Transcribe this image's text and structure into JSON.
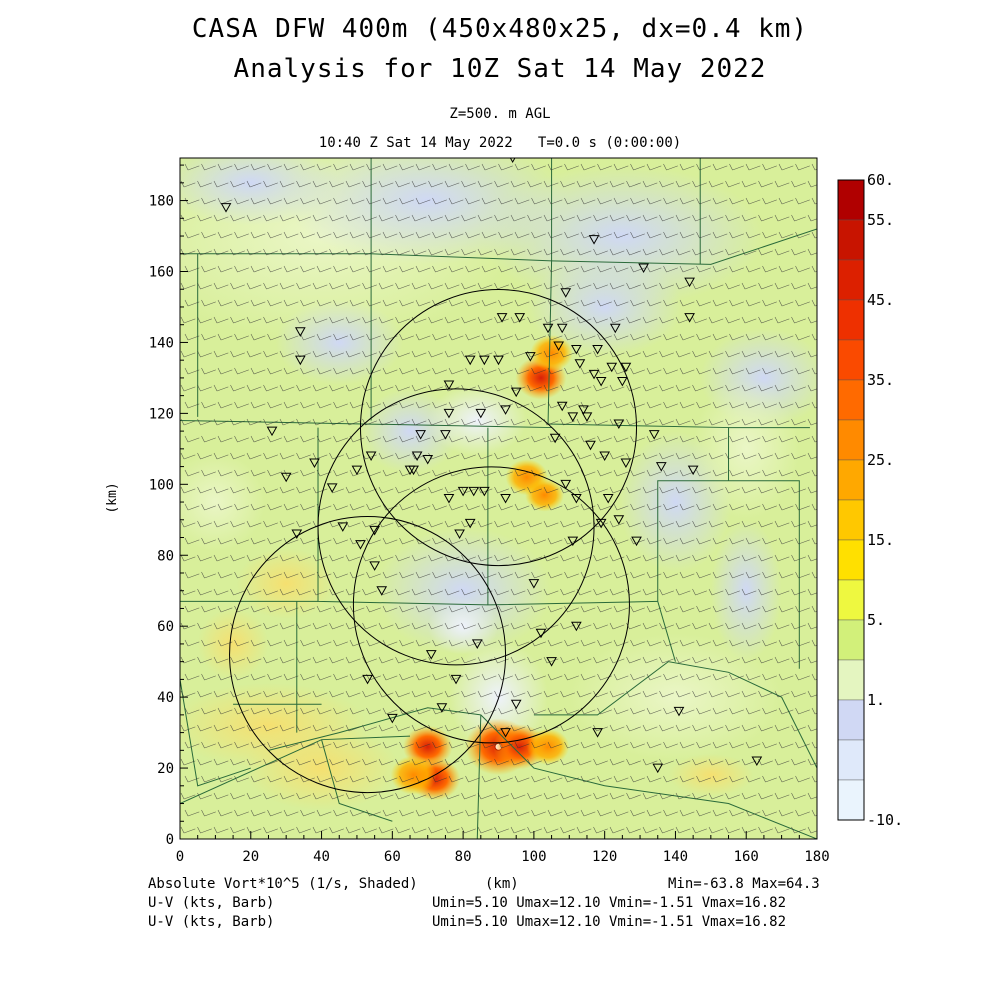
{
  "titles": {
    "line1": "CASA DFW 400m (450x480x25, dx=0.4 km)",
    "line2": "Analysis for 10Z Sat 14 May 2022",
    "level": "Z=500. m AGL",
    "time": "10:40 Z Sat 14 May 2022   T=0.0 s (0:00:00)"
  },
  "footer": {
    "field_label": "Absolute Vort*10^5 (1/s, Shaded)",
    "x_unit": "(km)",
    "minmax": "Min=-63.8 Max=64.3",
    "wind1_label": "U-V (kts, Barb)",
    "wind1_stats": "Umin=5.10 Umax=12.10 Vmin=-1.51 Vmax=16.82",
    "wind2_label": "U-V (kts, Barb)",
    "wind2_stats": "Umin=5.10 Umax=12.10 Vmin=-1.51 Vmax=16.82"
  },
  "colors": {
    "plot_bg": "#d8ef9a",
    "light_green": "#e6f5bd",
    "blue": "#d5dcf4",
    "yellow": "#f3e680",
    "orange": "#f0a030",
    "red": "#d83010",
    "county_line": "#2a6a3a"
  },
  "chart_data": {
    "type": "heatmap",
    "field": "Absolute Vort*10^5 (1/s, Shaded)",
    "xlabel": "(km)",
    "ylabel": "(km)",
    "xlim": [
      0,
      180
    ],
    "ylim": [
      0,
      192
    ],
    "x_ticks": [
      0,
      20,
      40,
      60,
      80,
      100,
      120,
      140,
      160,
      180
    ],
    "y_ticks": [
      0,
      20,
      40,
      60,
      80,
      100,
      120,
      140,
      160,
      180
    ],
    "colorbar": {
      "labels": [
        "60.",
        "55.",
        "45.",
        "35.",
        "25.",
        "15.",
        "5.",
        "1.",
        "-10."
      ],
      "levels": [
        60,
        55,
        50,
        45,
        40,
        35,
        30,
        25,
        20,
        15,
        10,
        5,
        2,
        1,
        -5,
        -10
      ],
      "colors": [
        "#b00000",
        "#c81400",
        "#dc2000",
        "#ee3000",
        "#fa4a00",
        "#ff6a00",
        "#ff8a00",
        "#ffa800",
        "#ffc800",
        "#ffe000",
        "#eef840",
        "#d2f07a",
        "#e4f5c0",
        "#d0d8f4",
        "#dfe9fa",
        "#eaf4fd"
      ]
    },
    "min": -63.8,
    "max": 64.3,
    "radar_rings": [
      {
        "cx": 90,
        "cy": 116,
        "r": 39
      },
      {
        "cx": 78,
        "cy": 88,
        "r": 39
      },
      {
        "cx": 88,
        "cy": 66,
        "r": 39
      },
      {
        "cx": 53,
        "cy": 52,
        "r": 39
      }
    ],
    "radar_sites": [
      [
        13,
        178
      ],
      [
        34,
        143
      ],
      [
        34,
        135
      ],
      [
        26,
        115
      ],
      [
        94,
        192
      ],
      [
        117,
        169
      ],
      [
        131,
        161
      ],
      [
        144,
        147
      ],
      [
        144,
        157
      ],
      [
        109,
        154
      ],
      [
        91,
        147
      ],
      [
        96,
        147
      ],
      [
        104,
        144
      ],
      [
        108,
        144
      ],
      [
        123,
        144
      ],
      [
        107,
        139
      ],
      [
        99,
        136
      ],
      [
        112,
        138
      ],
      [
        118,
        138
      ],
      [
        113,
        134
      ],
      [
        117,
        131
      ],
      [
        122,
        133
      ],
      [
        119,
        129
      ],
      [
        125,
        129
      ],
      [
        126,
        133
      ],
      [
        95,
        126
      ],
      [
        108,
        122
      ],
      [
        111,
        119
      ],
      [
        114,
        121
      ],
      [
        115,
        119
      ],
      [
        76,
        128
      ],
      [
        82,
        135
      ],
      [
        86,
        135
      ],
      [
        90,
        135
      ],
      [
        76,
        120
      ],
      [
        85,
        120
      ],
      [
        68,
        114
      ],
      [
        75,
        114
      ],
      [
        67,
        108
      ],
      [
        70,
        107
      ],
      [
        65,
        104
      ],
      [
        66,
        104
      ],
      [
        54,
        108
      ],
      [
        50,
        104
      ],
      [
        38,
        106
      ],
      [
        43,
        99
      ],
      [
        92,
        121
      ],
      [
        106,
        113
      ],
      [
        116,
        111
      ],
      [
        120,
        108
      ],
      [
        126,
        106
      ],
      [
        124,
        117
      ],
      [
        134,
        114
      ],
      [
        136,
        105
      ],
      [
        145,
        104
      ],
      [
        109,
        100
      ],
      [
        112,
        96
      ],
      [
        121,
        96
      ],
      [
        124,
        90
      ],
      [
        129,
        84
      ],
      [
        119,
        89
      ],
      [
        111,
        84
      ],
      [
        92,
        96
      ],
      [
        86,
        98
      ],
      [
        76,
        96
      ],
      [
        80,
        98
      ],
      [
        83,
        98
      ],
      [
        82,
        89
      ],
      [
        79,
        86
      ],
      [
        55,
        87
      ],
      [
        51,
        83
      ],
      [
        46,
        88
      ],
      [
        30,
        102
      ],
      [
        33,
        86
      ],
      [
        55,
        77
      ],
      [
        57,
        70
      ],
      [
        100,
        72
      ],
      [
        112,
        60
      ],
      [
        102,
        58
      ],
      [
        105,
        50
      ],
      [
        84,
        55
      ],
      [
        78,
        45
      ],
      [
        71,
        52
      ],
      [
        53,
        45
      ],
      [
        60,
        34
      ],
      [
        74,
        37
      ],
      [
        95,
        38
      ],
      [
        92,
        30
      ],
      [
        118,
        30
      ],
      [
        135,
        20
      ],
      [
        163,
        22
      ],
      [
        141,
        36
      ]
    ],
    "vorticity_features": [
      {
        "x": 102,
        "y": 130,
        "max": 42
      },
      {
        "x": 105,
        "y": 137,
        "max": 30
      },
      {
        "x": 98,
        "y": 102,
        "max": 30
      },
      {
        "x": 103,
        "y": 97,
        "max": 25
      },
      {
        "x": 90,
        "y": 26,
        "max": 64.3
      },
      {
        "x": 96,
        "y": 26,
        "max": 45
      },
      {
        "x": 70,
        "y": 26,
        "max": 40
      },
      {
        "x": 72,
        "y": 17,
        "max": 42
      },
      {
        "x": 66,
        "y": 18,
        "max": 35
      },
      {
        "x": 104,
        "y": 26,
        "max": 30
      }
    ],
    "wind": {
      "umin": 5.1,
      "umax": 12.1,
      "vmin": -1.51,
      "vmax": 16.82,
      "units": "kts"
    }
  }
}
